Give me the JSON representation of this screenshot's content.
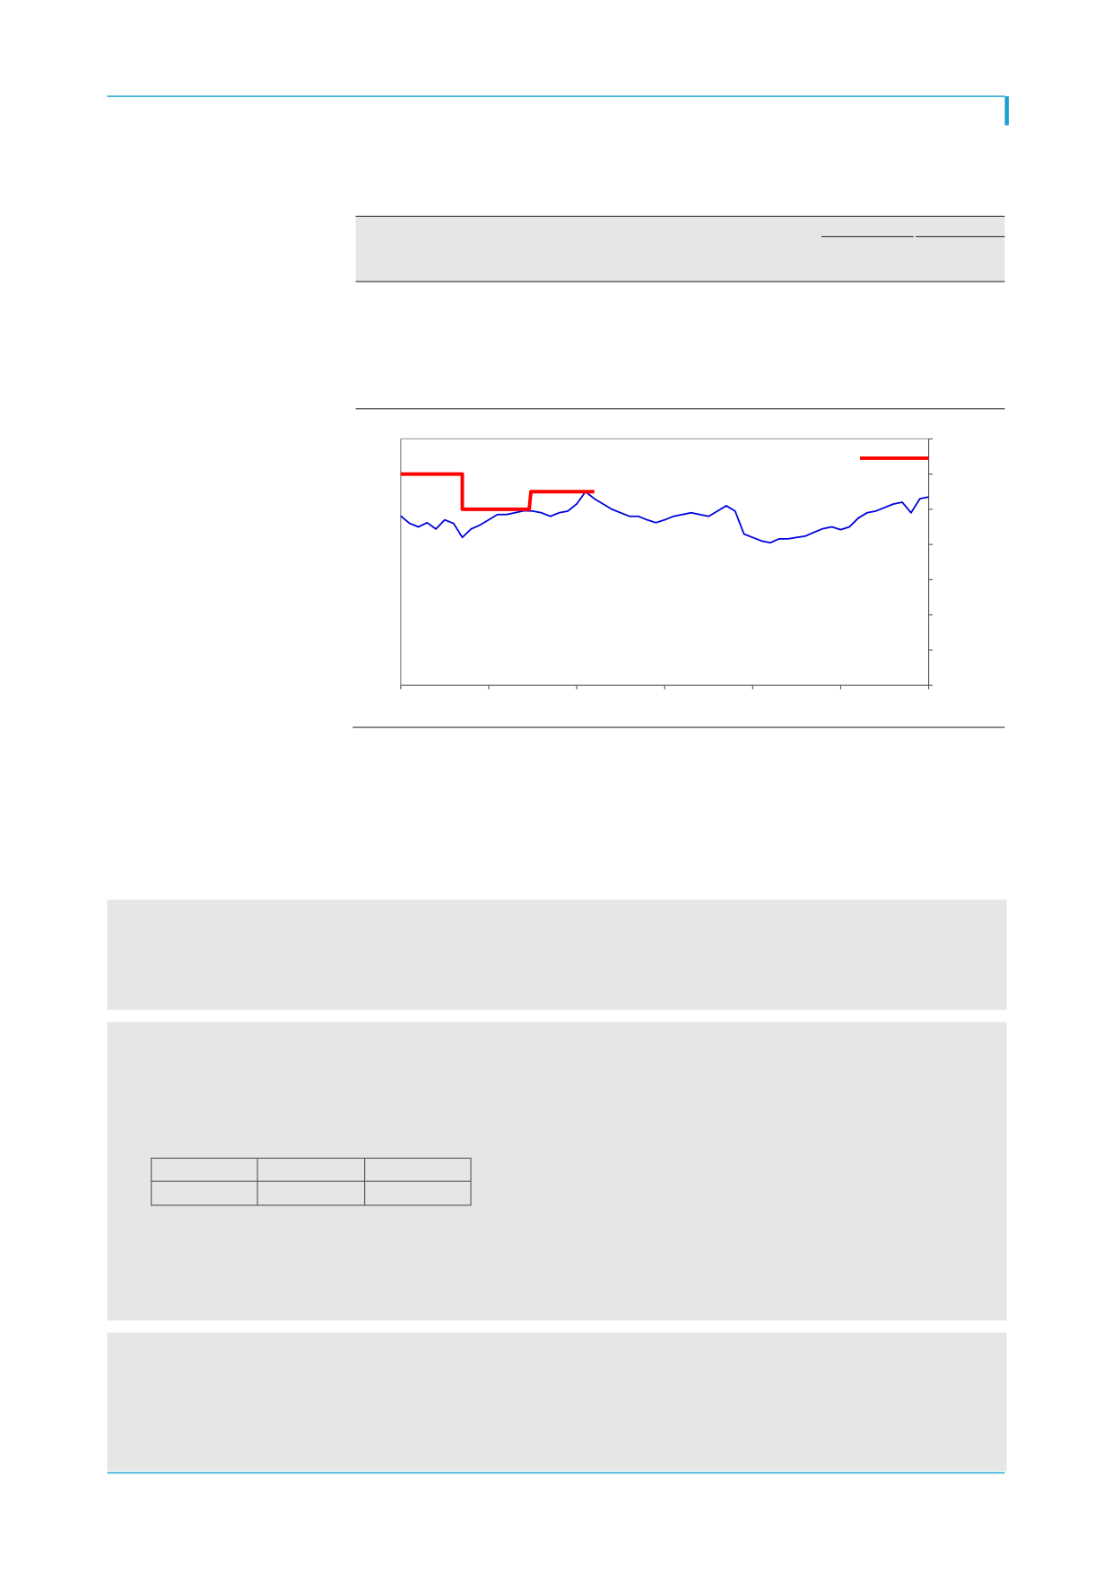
{
  "chart_data": {
    "type": "line",
    "xlim": [
      0,
      6
    ],
    "xticks": [
      0,
      1,
      2,
      3,
      4,
      5,
      6
    ],
    "ylim": [
      0,
      7
    ],
    "yticks": [
      0,
      1,
      2,
      3,
      4,
      5,
      6,
      7
    ],
    "series": [
      {
        "color": "#0000dd",
        "x": [
          0,
          0.1,
          0.2,
          0.3,
          0.4,
          0.5,
          0.6,
          0.7,
          0.8,
          0.9,
          1,
          1.1,
          1.2,
          1.3,
          1.4,
          1.5,
          1.6,
          1.7,
          1.8,
          1.9,
          2,
          2.1,
          2.2,
          2.3,
          2.4,
          2.5,
          2.6,
          2.7,
          2.8,
          2.9,
          3,
          3.1,
          3.2,
          3.3,
          3.4,
          3.5,
          3.6,
          3.7,
          3.8,
          3.9,
          4,
          4.1,
          4.2,
          4.3,
          4.4,
          4.5,
          4.6,
          4.7,
          4.8,
          4.9,
          5,
          5.1,
          5.2,
          5.3,
          5.4,
          5.5,
          5.6,
          5.7,
          5.8,
          5.9,
          6
        ],
        "values": [
          4.81,
          4.6,
          4.5,
          4.62,
          4.44,
          4.7,
          4.6,
          4.2,
          4.44,
          4.55,
          4.7,
          4.85,
          4.85,
          4.9,
          4.96,
          4.95,
          4.9,
          4.8,
          4.9,
          4.95,
          5.15,
          5.5,
          5.3,
          5.15,
          5.0,
          4.9,
          4.8,
          4.8,
          4.7,
          4.62,
          4.7,
          4.8,
          4.85,
          4.9,
          4.85,
          4.8,
          4.95,
          5.1,
          4.95,
          4.3,
          4.2,
          4.1,
          4.05,
          4.16,
          4.16,
          4.2,
          4.24,
          4.35,
          4.45,
          4.5,
          4.42,
          4.5,
          4.75,
          4.9,
          4.95,
          5.05,
          5.15,
          5.2,
          4.9,
          5.3,
          5.35
        ]
      },
      {
        "color": "#ff0000",
        "x": [
          0,
          0.7,
          0.7,
          1.46,
          1.48,
          2.2,
          2.2,
          5.22,
          6
        ],
        "values": [
          6,
          6,
          5,
          5,
          5.5,
          5.5,
          null,
          6.45,
          6.45
        ]
      }
    ]
  }
}
